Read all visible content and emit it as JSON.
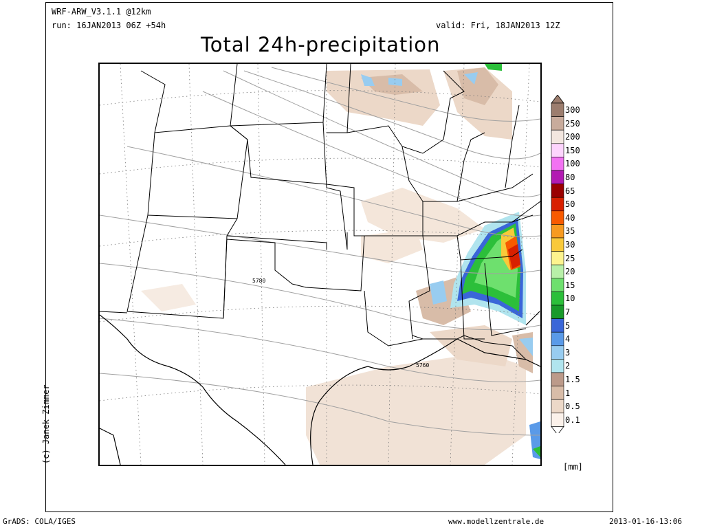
{
  "header": {
    "model": "WRF-ARW_V3.1.1 @12km",
    "run": "run: 16JAN2013 06Z +54h",
    "valid": "valid: Fri, 18JAN2013 12Z",
    "title": "Total 24h-precipitation"
  },
  "map": {
    "contour_labels": [
      "5780",
      "5760"
    ]
  },
  "copyright": "(c) Janek Zimmer",
  "legend": {
    "unit": "[mm]",
    "levels": [
      {
        "label": "300",
        "color": "#9c7d6e"
      },
      {
        "label": "250",
        "color": "#c8ab9c"
      },
      {
        "label": "200",
        "color": "#f2e6df"
      },
      {
        "label": "150",
        "color": "#fdd4fd"
      },
      {
        "label": "100",
        "color": "#f272f2"
      },
      {
        "label": "80",
        "color": "#b21ab2"
      },
      {
        "label": "65",
        "color": "#9a0000"
      },
      {
        "label": "50",
        "color": "#d82000"
      },
      {
        "label": "40",
        "color": "#f85a00"
      },
      {
        "label": "35",
        "color": "#f79a20"
      },
      {
        "label": "30",
        "color": "#f9c93a"
      },
      {
        "label": "25",
        "color": "#fdf38e"
      },
      {
        "label": "20",
        "color": "#b8f0a8"
      },
      {
        "label": "15",
        "color": "#6ee06e"
      },
      {
        "label": "10",
        "color": "#2cbf3a"
      },
      {
        "label": "7",
        "color": "#189a2a"
      },
      {
        "label": "5",
        "color": "#3a66d8"
      },
      {
        "label": "4",
        "color": "#5a9ae8"
      },
      {
        "label": "3",
        "color": "#98ccf0"
      },
      {
        "label": "2",
        "color": "#b0e4ee"
      },
      {
        "label": "1.5",
        "color": "#bc9a8a"
      },
      {
        "label": "1",
        "color": "#d8bca8"
      },
      {
        "label": "0.5",
        "color": "#ecd8c8"
      },
      {
        "label": "0.1",
        "color": "#fbf1ea"
      }
    ]
  },
  "footer": {
    "left": "GrADS: COLA/IGES",
    "center": "www.modellzentrale.de",
    "right": "2013-01-16-13:06"
  }
}
